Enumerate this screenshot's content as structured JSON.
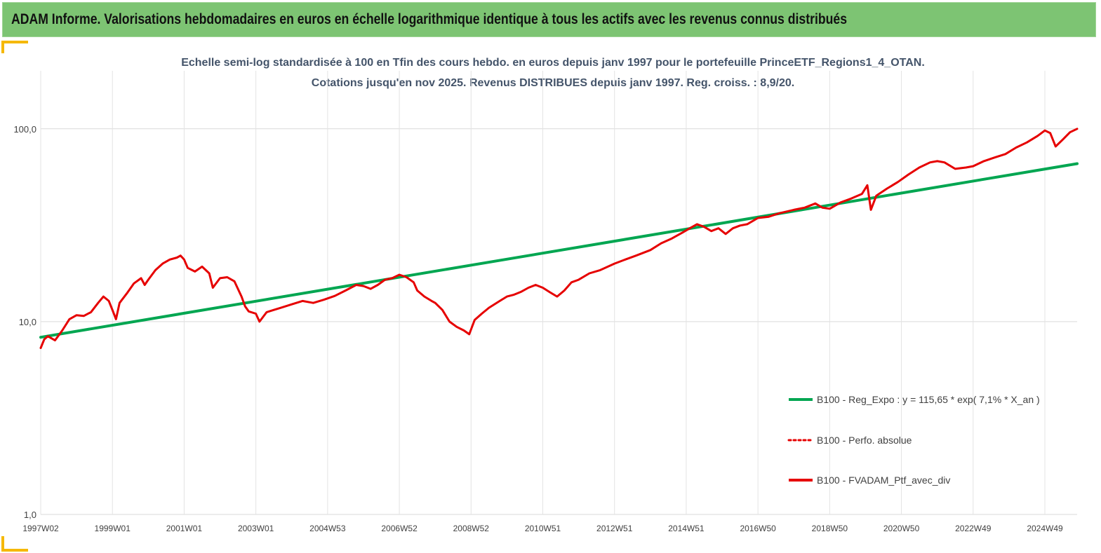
{
  "banner": {
    "title": "ADAM Informe. Valorisations hebdomadaires en euros en échelle logarithmique identique à tous les actifs avec les revenus connus distribués"
  },
  "colors": {
    "banner_bg": "#7dc473",
    "accent_corner": "#f5b800",
    "regression": "#00a651",
    "portfolio": "#e60000",
    "title_text": "#44546a"
  },
  "chart_data": {
    "type": "line",
    "title": [
      "Echelle semi-log standardisée  à 100 en Tfin des cours hebdo.  en euros depuis janv 1997 pour le portefeuille PrinceETF_Regions1_4_OTAN.",
      "Cotations  jusqu'en  nov  2025. Revenus DISTRIBUES depuis janv 1997. Reg. croiss. : 8,9/20."
    ],
    "y_scale": "log",
    "ylim": [
      1,
      200
    ],
    "xlim": [
      1997.0,
      2025.9
    ],
    "y_ticks": [
      {
        "value": 1,
        "label": "1,0"
      },
      {
        "value": 10,
        "label": "10,0"
      },
      {
        "value": 100,
        "label": "100,0"
      }
    ],
    "x_ticks": [
      {
        "value": 1997.0,
        "label": "1997W02"
      },
      {
        "value": 1999.0,
        "label": "1999W01"
      },
      {
        "value": 2001.0,
        "label": "2001W01"
      },
      {
        "value": 2003.0,
        "label": "2003W01"
      },
      {
        "value": 2005.0,
        "label": "2004W53"
      },
      {
        "value": 2007.0,
        "label": "2006W52"
      },
      {
        "value": 2009.0,
        "label": "2008W52"
      },
      {
        "value": 2011.0,
        "label": "2010W51"
      },
      {
        "value": 2013.0,
        "label": "2012W51"
      },
      {
        "value": 2015.0,
        "label": "2014W51"
      },
      {
        "value": 2017.0,
        "label": "2016W50"
      },
      {
        "value": 2019.0,
        "label": "2018W50"
      },
      {
        "value": 2021.0,
        "label": "2020W50"
      },
      {
        "value": 2023.0,
        "label": "2022W49"
      },
      {
        "value": 2025.0,
        "label": "2024W49"
      }
    ],
    "grid": true,
    "legend_position": "bottom-right",
    "series": [
      {
        "name": "B100 - Reg_Expo : y = 115,65 * exp( 7,1% *  X_an )",
        "color": "#00a651",
        "style": "solid",
        "x": [
          1997.0,
          2025.9
        ],
        "y": [
          8.3,
          66.0
        ]
      },
      {
        "name": "B100 - Perfo. absolue",
        "color": "#e60000",
        "style": "dotted",
        "x": [],
        "y": []
      },
      {
        "name": "B100 - FVADAM_Ptf_avec_div",
        "color": "#e60000",
        "style": "solid",
        "x": [
          1997.0,
          1997.1,
          1997.2,
          1997.4,
          1997.6,
          1997.8,
          1998.0,
          1998.2,
          1998.4,
          1998.6,
          1998.75,
          1998.9,
          1999.0,
          1999.1,
          1999.2,
          1999.4,
          1999.6,
          1999.8,
          1999.9,
          2000.0,
          2000.2,
          2000.4,
          2000.6,
          2000.8,
          2000.9,
          2001.0,
          2001.1,
          2001.3,
          2001.5,
          2001.7,
          2001.8,
          2002.0,
          2002.2,
          2002.4,
          2002.6,
          2002.7,
          2002.8,
          2003.0,
          2003.1,
          2003.3,
          2003.5,
          2003.7,
          2004.0,
          2004.3,
          2004.6,
          2004.9,
          2005.2,
          2005.5,
          2005.8,
          2006.0,
          2006.2,
          2006.4,
          2006.6,
          2006.8,
          2007.0,
          2007.2,
          2007.4,
          2007.5,
          2007.7,
          2007.9,
          2008.0,
          2008.2,
          2008.4,
          2008.6,
          2008.8,
          2008.95,
          2009.1,
          2009.3,
          2009.5,
          2009.8,
          2010.0,
          2010.2,
          2010.4,
          2010.6,
          2010.8,
          2011.0,
          2011.2,
          2011.4,
          2011.6,
          2011.8,
          2012.0,
          2012.3,
          2012.6,
          2013.0,
          2013.3,
          2013.6,
          2014.0,
          2014.3,
          2014.6,
          2014.9,
          2015.1,
          2015.3,
          2015.5,
          2015.7,
          2015.9,
          2016.1,
          2016.3,
          2016.5,
          2016.7,
          2017.0,
          2017.3,
          2017.6,
          2018.0,
          2018.3,
          2018.6,
          2018.8,
          2019.0,
          2019.3,
          2019.6,
          2019.9,
          2020.05,
          2020.15,
          2020.3,
          2020.6,
          2020.9,
          2021.2,
          2021.5,
          2021.8,
          2022.0,
          2022.2,
          2022.5,
          2022.8,
          2023.0,
          2023.3,
          2023.6,
          2023.9,
          2024.2,
          2024.5,
          2024.8,
          2025.0,
          2025.15,
          2025.3,
          2025.5,
          2025.7,
          2025.9
        ],
        "y": [
          7.3,
          8.1,
          8.4,
          8.0,
          9.0,
          10.3,
          10.8,
          10.7,
          11.2,
          12.5,
          13.5,
          12.8,
          11.5,
          10.3,
          12.5,
          14.0,
          15.8,
          16.8,
          15.5,
          16.5,
          18.5,
          20.0,
          21.0,
          21.5,
          22.0,
          21.0,
          19.0,
          18.2,
          19.3,
          17.8,
          15.0,
          16.8,
          17.0,
          16.2,
          13.5,
          12.0,
          11.3,
          11.0,
          10.0,
          11.2,
          11.5,
          11.8,
          12.3,
          12.8,
          12.5,
          13.0,
          13.6,
          14.5,
          15.5,
          15.3,
          14.8,
          15.5,
          16.5,
          16.8,
          17.5,
          17.0,
          16.0,
          14.5,
          13.5,
          12.8,
          12.5,
          11.5,
          10.0,
          9.4,
          9.0,
          8.6,
          10.2,
          11.0,
          11.8,
          12.8,
          13.5,
          13.8,
          14.3,
          15.0,
          15.5,
          15.0,
          14.2,
          13.5,
          14.5,
          16.0,
          16.5,
          17.8,
          18.5,
          20.0,
          21.0,
          22.0,
          23.5,
          25.5,
          27.0,
          29.0,
          30.5,
          32.0,
          31.0,
          29.5,
          30.5,
          28.5,
          30.5,
          31.5,
          32.0,
          34.5,
          35.0,
          36.5,
          38.0,
          39.0,
          41.0,
          39.0,
          38.5,
          41.5,
          43.5,
          46.0,
          51.0,
          38.0,
          45.0,
          49.0,
          53.0,
          58.0,
          63.0,
          67.0,
          68.0,
          67.0,
          62.0,
          63.0,
          64.0,
          68.0,
          71.0,
          74.0,
          80.0,
          85.0,
          92.0,
          98.0,
          95.0,
          81.0,
          88.0,
          96.0,
          100.0
        ]
      }
    ]
  }
}
